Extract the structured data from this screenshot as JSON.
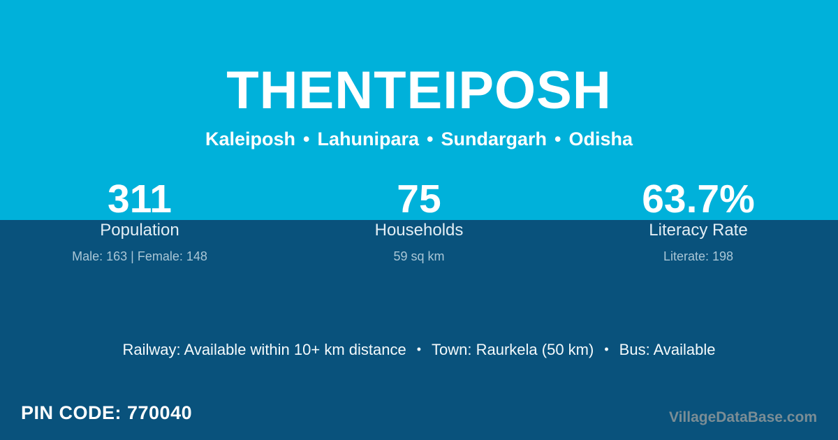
{
  "theme": {
    "top_band_color": "#00b1da",
    "bottom_band_color": "#09527c",
    "text_primary": "#ffffff",
    "text_label": "#e3eef5",
    "text_muted": "#a9c6d6",
    "watermark_color": "#7b8d95"
  },
  "header": {
    "village_name": "THENTEIPOSH",
    "location_parts": [
      "Kaleiposh",
      "Lahunipara",
      "Sundargarh",
      "Odisha"
    ]
  },
  "separators": {
    "bullet": "•"
  },
  "stats": [
    {
      "value": "311",
      "label": "Population",
      "detail": "Male: 163 | Female: 148"
    },
    {
      "value": "75",
      "label": "Households",
      "detail": "59 sq km"
    },
    {
      "value": "63.7%",
      "label": "Literacy Rate",
      "detail": "Literate: 198"
    }
  ],
  "transport": {
    "items": [
      "Railway: Available within 10+ km distance",
      "Town: Raurkela (50 km)",
      "Bus: Available"
    ]
  },
  "footer": {
    "pin_code_line": "PIN CODE: 770040",
    "watermark": "VillageDataBase.com"
  }
}
